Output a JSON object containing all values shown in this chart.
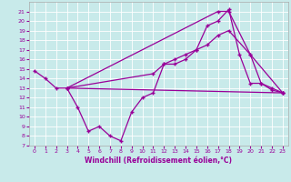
{
  "xlabel": "Windchill (Refroidissement éolien,°C)",
  "bg_color": "#c8eaea",
  "line_color": "#990099",
  "grid_color": "#ffffff",
  "ylim": [
    7,
    22
  ],
  "xlim": [
    -0.5,
    23.5
  ],
  "yticks": [
    7,
    8,
    9,
    10,
    11,
    12,
    13,
    14,
    15,
    16,
    17,
    18,
    19,
    20,
    21
  ],
  "xticks": [
    0,
    1,
    2,
    3,
    4,
    5,
    6,
    7,
    8,
    9,
    10,
    11,
    12,
    13,
    14,
    15,
    16,
    17,
    18,
    19,
    20,
    21,
    22,
    23
  ],
  "curve1_x": [
    0,
    1,
    2,
    3,
    4,
    5,
    6,
    7,
    8,
    9,
    10,
    11,
    12,
    13,
    14,
    15,
    16,
    17,
    18,
    19,
    20,
    21,
    22,
    23
  ],
  "curve1_y": [
    14.8,
    14.0,
    13.0,
    13.0,
    11.0,
    8.5,
    9.0,
    8.0,
    7.5,
    10.5,
    12.0,
    12.5,
    15.5,
    15.5,
    16.0,
    17.0,
    19.5,
    20.0,
    21.2,
    16.5,
    13.5,
    13.5,
    12.8,
    12.5
  ],
  "curve2_x": [
    3,
    23
  ],
  "curve2_y": [
    13.0,
    12.5
  ],
  "curve3_x": [
    3,
    17,
    18,
    20,
    23
  ],
  "curve3_y": [
    13.0,
    21.0,
    21.0,
    16.5,
    12.5
  ],
  "curve4_x": [
    3,
    11,
    12,
    13,
    14,
    15,
    16,
    17,
    18,
    20,
    21,
    22,
    23
  ],
  "curve4_y": [
    13.0,
    14.5,
    15.5,
    16.0,
    16.5,
    17.0,
    17.5,
    18.5,
    19.0,
    16.5,
    13.5,
    13.0,
    12.5
  ]
}
